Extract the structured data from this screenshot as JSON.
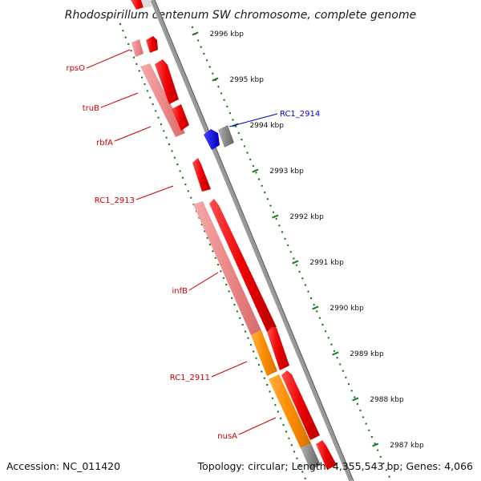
{
  "title": "Rhodospirillum centenum SW chromosome, complete genome",
  "footer": {
    "accession": "Accession: NC_011420",
    "topology": "Topology: circular; Length: 4,355,543 bp; Genes: 4,066"
  },
  "colors": {
    "cds_red": "#ee0000",
    "cds_red_dark": "#b80000",
    "gene_pink": "#ee8888",
    "rna_orange": "#ff8c00",
    "blue_feature": "#0000ee",
    "gray_feature": "#777777",
    "backbone": "#888888",
    "tick_green": "#1a7a1a",
    "label_red": "#cc0000",
    "label_blue": "#0000cc"
  },
  "ticks": [
    {
      "label": "2996 kbp"
    },
    {
      "label": "2995 kbp"
    },
    {
      "label": "2994 kbp"
    },
    {
      "label": "2993 kbp"
    },
    {
      "label": "2992 kbp"
    },
    {
      "label": "2991 kbp"
    },
    {
      "label": "2990 kbp"
    },
    {
      "label": "2989 kbp"
    },
    {
      "label": "2988 kbp"
    },
    {
      "label": "2987 kbp"
    }
  ],
  "gene_labels": [
    {
      "name": "rpsO"
    },
    {
      "name": "truB"
    },
    {
      "name": "rbfA"
    },
    {
      "name": "RC1_2913"
    },
    {
      "name": "infB"
    },
    {
      "name": "RC1_2911"
    },
    {
      "name": "nusA"
    },
    {
      "name": "RC1_2914"
    }
  ]
}
